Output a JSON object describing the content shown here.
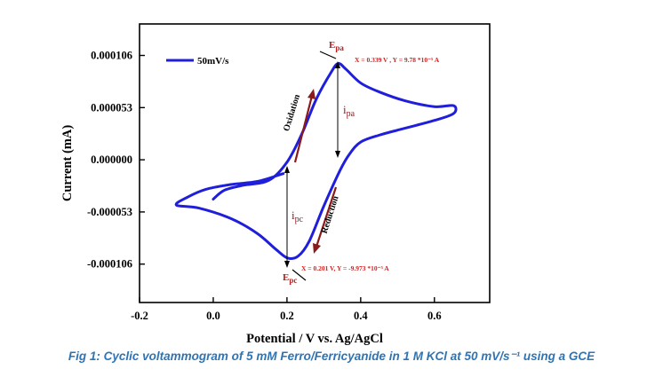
{
  "chart_data": {
    "type": "line",
    "xlabel": "Potential / V vs. Ag/AgCl",
    "ylabel": "Current (mA)",
    "xlim": [
      -0.2,
      0.75
    ],
    "ylim": [
      -0.000145,
      0.000138
    ],
    "xticks": [
      -0.2,
      0.0,
      0.2,
      0.4,
      0.6
    ],
    "xtick_labels": [
      "-0.2",
      "0.0",
      "0.2",
      "0.4",
      "0.6"
    ],
    "yticks": [
      0.000106,
      5.3e-05,
      0.0,
      -5.3e-05,
      -0.000106
    ],
    "ytick_labels": [
      "0.000106",
      "0.000053",
      "0.000000",
      "-0.000053",
      "-0.000106"
    ],
    "grid": false,
    "legend_position": "top-left",
    "series_color": "#1f1fdb",
    "series": [
      {
        "name": "50mV/s",
        "points": [
          [
            0.0,
            -4e-05
          ],
          [
            0.03,
            -3.1e-05
          ],
          [
            0.08,
            -2.6e-05
          ],
          [
            0.15,
            -2.1e-05
          ],
          [
            0.2,
            -2.5e-06
          ],
          [
            0.24,
            2.6e-05
          ],
          [
            0.28,
            6.2e-05
          ],
          [
            0.32,
            8.9e-05
          ],
          [
            0.339,
            9.78e-05
          ],
          [
            0.36,
            9.2e-05
          ],
          [
            0.4,
            7.8e-05
          ],
          [
            0.45,
            6.9e-05
          ],
          [
            0.52,
            6e-05
          ],
          [
            0.6,
            5.4e-05
          ],
          [
            0.652,
            5.5e-05
          ],
          [
            0.652,
            4.7e-05
          ],
          [
            0.6,
            4e-05
          ],
          [
            0.52,
            3.2e-05
          ],
          [
            0.45,
            2.5e-05
          ],
          [
            0.4,
            1.8e-05
          ],
          [
            0.37,
            6e-06
          ],
          [
            0.345,
            -1e-05
          ],
          [
            0.3,
            -4.7e-05
          ],
          [
            0.26,
            -8.3e-05
          ],
          [
            0.23,
            -9.8e-05
          ],
          [
            0.201,
            -9.973e-05
          ],
          [
            0.17,
            -9.1e-05
          ],
          [
            0.12,
            -7.5e-05
          ],
          [
            0.05,
            -6e-05
          ],
          [
            -0.04,
            -4.9e-05
          ],
          [
            -0.1,
            -4.6e-05
          ],
          [
            -0.07,
            -3.8e-05
          ],
          [
            -0.02,
            -3e-05
          ],
          [
            0.05,
            -2.5e-05
          ],
          [
            0.12,
            -2.2e-05
          ],
          [
            0.19,
            -1.4e-05
          ]
        ]
      }
    ],
    "annotations": {
      "epa_label": "E",
      "epa_sub": "pa",
      "epc_label": "E",
      "epc_sub": "pc",
      "ipa_label": "i",
      "ipa_sub": "pa",
      "ipc_label": "i",
      "ipc_sub": "pc",
      "peak_anodic_text": "X = 0.339 V , Y = 9.78 *10⁻⁵ A",
      "peak_cathodic_text": "X = 0.201 V,  Y = -9.973 *10⁻⁵ A",
      "oxidation": "Oxidation",
      "reduction": "Reduction"
    }
  },
  "caption": "Fig 1: Cyclic voltammogram of 5 mM Ferro/Ferricyanide in 1 M KCl at 50 mV/s⁻¹ using a GCE"
}
